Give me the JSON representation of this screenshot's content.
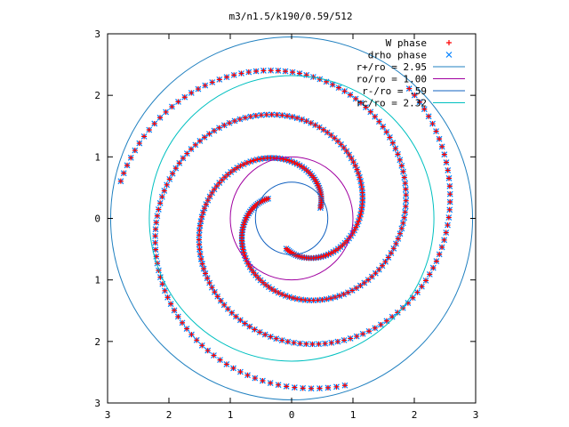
{
  "chart_data": {
    "type": "scatter",
    "title": "m3/n1.5/k190/0.59/512",
    "xlabel": "",
    "ylabel": "",
    "xlim": [
      -3,
      3
    ],
    "ylim": [
      -3,
      3
    ],
    "x_ticks": [
      "3",
      "2",
      "1",
      "0",
      "1",
      "2",
      "3"
    ],
    "y_ticks": [
      "3",
      "2",
      "1",
      "0",
      "1",
      "2",
      "3"
    ],
    "grid": false,
    "legend_position": "top-right",
    "colors": {
      "w_phase": "#ff0000",
      "drho_phase": "#0080ff",
      "r_plus": "#2080c0",
      "ro": "#a000a0",
      "r_minus": "#1060c0",
      "rc": "#00c0c0"
    },
    "series": [
      {
        "name": "W phase",
        "kind": "points",
        "marker": "plus",
        "arms": [
          {
            "r_start": 0.5,
            "r_end": 2.85,
            "theta_start_deg": -100,
            "winding_deg_per_unit_r": 165,
            "n_points": 140
          },
          {
            "r_start": 0.5,
            "r_end": 2.85,
            "theta_start_deg": 20,
            "winding_deg_per_unit_r": 165,
            "n_points": 140
          },
          {
            "r_start": 0.5,
            "r_end": 2.85,
            "theta_start_deg": 140,
            "winding_deg_per_unit_r": 165,
            "n_points": 140
          }
        ]
      },
      {
        "name": "drho phase",
        "kind": "points",
        "marker": "cross",
        "arms": [
          {
            "r_start": 0.5,
            "r_end": 2.85,
            "theta_start_deg": -100,
            "winding_deg_per_unit_r": 165,
            "n_points": 140
          },
          {
            "r_start": 0.5,
            "r_end": 2.85,
            "theta_start_deg": 20,
            "winding_deg_per_unit_r": 165,
            "n_points": 140
          },
          {
            "r_start": 0.5,
            "r_end": 2.85,
            "theta_start_deg": 140,
            "winding_deg_per_unit_r": 165,
            "n_points": 140
          }
        ]
      },
      {
        "name": "r+/ro = 2.95",
        "kind": "circle",
        "radius": 2.95
      },
      {
        "name": "ro/ro = 1.00",
        "kind": "circle",
        "radius": 1.0
      },
      {
        "name": "r-/ro = .59",
        "kind": "circle",
        "radius": 0.59
      },
      {
        "name": "rc/ro = 2.32",
        "kind": "circle",
        "radius": 2.32
      }
    ]
  }
}
